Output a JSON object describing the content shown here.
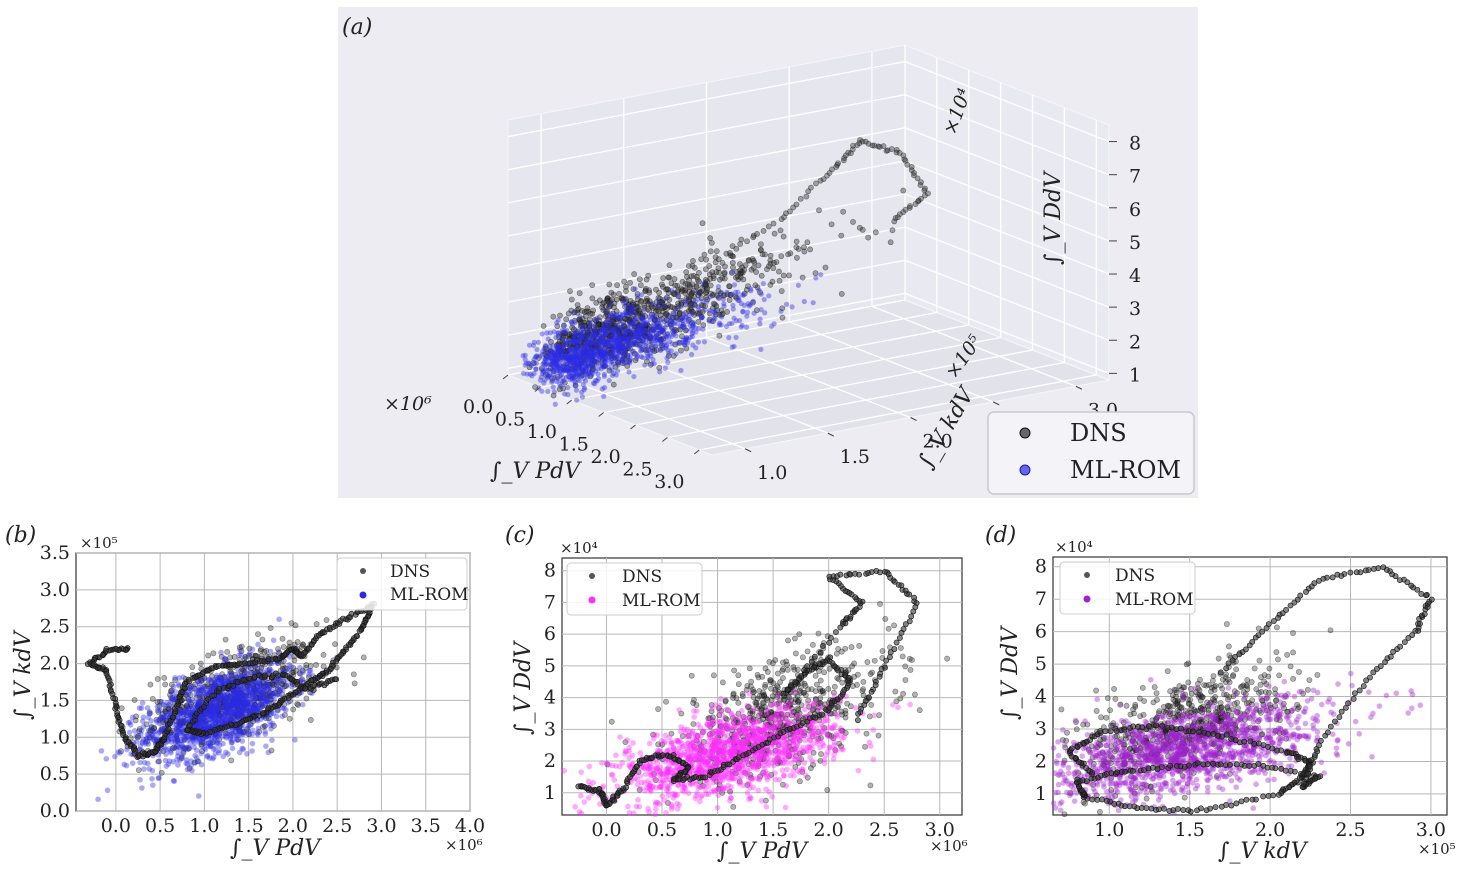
{
  "panel_labels": {
    "a": "(a)",
    "b": "(b)",
    "c": "(c)",
    "d": "(d)"
  },
  "legend": {
    "dns": "DNS",
    "mlrom": "ML-ROM"
  },
  "colors": {
    "dns": "#2b2b2b",
    "blue": "#2a2ae6",
    "magenta": "#ff2cff",
    "purple": "#a020d0",
    "panel_bg3d": "#e8e8f0",
    "grid": "#b0b0b0"
  },
  "chart_data": [
    {
      "id": "a",
      "type": "scatter",
      "projection": "3d",
      "axes": {
        "x": {
          "label": "∫_V PdV",
          "multiplier": "×10⁶",
          "ticks": [
            "0.0",
            "0.5",
            "1.0",
            "1.5",
            "2.0",
            "2.5",
            "3.0"
          ],
          "lim": [
            0,
            3.2
          ]
        },
        "y": {
          "label": "∫_V kdV",
          "multiplier": "×10⁵",
          "ticks": [
            "1.0",
            "1.5",
            "2.0",
            "2.5",
            "3.0"
          ],
          "lim": [
            0.8,
            3.2
          ]
        },
        "z": {
          "label": "∫_V DdV",
          "multiplier": "×10⁴",
          "ticks": [
            "1",
            "2",
            "3",
            "4",
            "5",
            "6",
            "7",
            "8"
          ],
          "lim": [
            0.8,
            8.5
          ]
        }
      },
      "legend_position": "lower-right",
      "series": [
        {
          "name": "DNS",
          "color": "#2b2b2b"
        },
        {
          "name": "ML-ROM",
          "color": "#2a2ae6"
        }
      ]
    },
    {
      "id": "b",
      "type": "scatter",
      "xlabel": "∫_V PdV",
      "ylabel": "∫_V kdV",
      "xmult": "×10⁶",
      "ymult": "×10⁵",
      "xticks": [
        "0.0",
        "0.5",
        "1.0",
        "1.5",
        "2.0",
        "2.5",
        "3.0",
        "3.5",
        "4.0"
      ],
      "yticks": [
        "0.0",
        "0.5",
        "1.0",
        "1.5",
        "2.0",
        "2.5",
        "3.0",
        "3.5"
      ],
      "xlim": [
        -0.45,
        4.0
      ],
      "ylim": [
        0.0,
        3.5
      ],
      "grid": true,
      "legend_position": "top-right",
      "series": [
        {
          "name": "DNS",
          "color": "#2b2b2b",
          "trajectory": [
            [
              0.15,
              2.2
            ],
            [
              -0.1,
              2.18
            ],
            [
              -0.3,
              2.0
            ],
            [
              -0.1,
              1.9
            ],
            [
              0.0,
              1.4
            ],
            [
              0.1,
              1.0
            ],
            [
              0.25,
              0.75
            ],
            [
              0.45,
              0.8
            ],
            [
              0.55,
              1.0
            ],
            [
              0.7,
              1.45
            ],
            [
              0.8,
              1.75
            ],
            [
              1.1,
              1.95
            ],
            [
              1.4,
              2.0
            ],
            [
              1.8,
              2.05
            ],
            [
              2.0,
              2.2
            ],
            [
              2.1,
              2.1
            ],
            [
              2.3,
              2.4
            ],
            [
              2.6,
              2.6
            ],
            [
              2.9,
              2.8
            ],
            [
              2.8,
              2.5
            ],
            [
              2.6,
              2.2
            ],
            [
              2.4,
              1.9
            ],
            [
              2.2,
              1.75
            ],
            [
              1.95,
              1.55
            ],
            [
              1.7,
              1.35
            ],
            [
              1.4,
              1.2
            ],
            [
              1.0,
              1.05
            ],
            [
              0.8,
              1.1
            ],
            [
              1.1,
              1.6
            ],
            [
              1.5,
              1.8
            ],
            [
              1.9,
              1.85
            ],
            [
              2.15,
              1.65
            ],
            [
              2.5,
              1.8
            ]
          ],
          "center": [
            1.3,
            1.55
          ],
          "spread": [
            0.5,
            0.35
          ]
        },
        {
          "name": "ML-ROM",
          "color": "#2a2ae6",
          "center": [
            1.15,
            1.35
          ],
          "spread": [
            0.42,
            0.32
          ]
        }
      ]
    },
    {
      "id": "c",
      "type": "scatter",
      "xlabel": "∫_V PdV",
      "ylabel": "∫_V DdV",
      "xmult": "×10⁶",
      "ymult": "×10⁴",
      "xticks": [
        "0.0",
        "0.5",
        "1.0",
        "1.5",
        "2.0",
        "2.5",
        "3.0"
      ],
      "yticks": [
        "1",
        "2",
        "3",
        "4",
        "5",
        "6",
        "7",
        "8"
      ],
      "xlim": [
        -0.4,
        3.2
      ],
      "ylim": [
        0.3,
        8.4
      ],
      "grid": true,
      "legend_position": "top-left",
      "series": [
        {
          "name": "DNS",
          "color": "#2b2b2b",
          "trajectory": [
            [
              -0.25,
              1.2
            ],
            [
              -0.05,
              1.05
            ],
            [
              0.0,
              0.6
            ],
            [
              0.15,
              1.1
            ],
            [
              0.3,
              2.0
            ],
            [
              0.55,
              2.2
            ],
            [
              0.75,
              1.8
            ],
            [
              0.6,
              1.4
            ],
            [
              0.9,
              1.5
            ],
            [
              1.2,
              2.1
            ],
            [
              1.6,
              2.9
            ],
            [
              2.0,
              3.6
            ],
            [
              2.2,
              4.5
            ],
            [
              2.0,
              5.2
            ],
            [
              1.8,
              4.8
            ],
            [
              1.6,
              4.1
            ],
            [
              2.1,
              6.2
            ],
            [
              2.3,
              7.0
            ],
            [
              2.0,
              7.8
            ],
            [
              2.5,
              8.0
            ],
            [
              2.8,
              7.0
            ],
            [
              2.5,
              5.0
            ],
            [
              2.25,
              3.3
            ]
          ],
          "center": [
            1.55,
            3.4
          ],
          "spread": [
            0.5,
            1.0
          ]
        },
        {
          "name": "ML-ROM",
          "color": "#ff2cff",
          "center": [
            1.1,
            2.2
          ],
          "spread": [
            0.5,
            0.7
          ]
        }
      ]
    },
    {
      "id": "d",
      "type": "scatter",
      "xlabel": "∫_V kdV",
      "ylabel": "∫_V DdV",
      "xmult": "×10⁵",
      "ymult": "×10⁴",
      "xticks": [
        "1.0",
        "1.5",
        "2.0",
        "2.5",
        "3.0"
      ],
      "yticks": [
        "1",
        "2",
        "3",
        "4",
        "5",
        "6",
        "7",
        "8"
      ],
      "xlim": [
        0.65,
        3.1
      ],
      "ylim": [
        0.35,
        8.3
      ],
      "grid": true,
      "legend_position": "top-left",
      "series": [
        {
          "name": "DNS",
          "color": "#2b2b2b",
          "trajectory": [
            [
              0.9,
              1.6
            ],
            [
              0.75,
              2.3
            ],
            [
              0.95,
              2.9
            ],
            [
              1.3,
              3.1
            ],
            [
              1.7,
              2.8
            ],
            [
              2.1,
              2.3
            ],
            [
              2.25,
              2.0
            ],
            [
              2.2,
              1.5
            ],
            [
              2.05,
              1.0
            ],
            [
              1.6,
              0.5
            ],
            [
              1.2,
              0.55
            ],
            [
              0.85,
              0.9
            ],
            [
              0.8,
              1.4
            ],
            [
              1.1,
              1.7
            ],
            [
              1.5,
              1.9
            ],
            [
              1.9,
              1.9
            ],
            [
              2.3,
              1.55
            ],
            [
              2.2,
              1.2
            ],
            [
              2.3,
              2.5
            ],
            [
              2.6,
              4.5
            ],
            [
              2.9,
              6.0
            ],
            [
              3.0,
              7.0
            ],
            [
              2.7,
              8.0
            ],
            [
              2.3,
              7.6
            ],
            [
              2.0,
              6.2
            ],
            [
              1.7,
              4.8
            ]
          ],
          "center": [
            1.5,
            3.2
          ],
          "spread": [
            0.32,
            0.9
          ]
        },
        {
          "name": "ML-ROM",
          "color": "#a020d0",
          "center": [
            1.45,
            2.3
          ],
          "spread": [
            0.45,
            0.75
          ]
        }
      ]
    }
  ]
}
